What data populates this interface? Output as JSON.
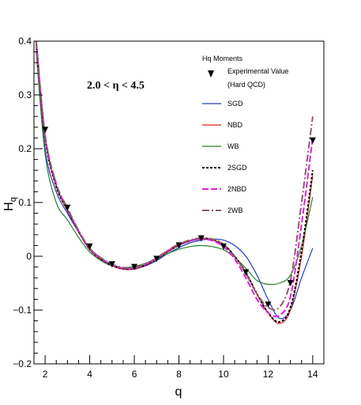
{
  "chart_data": {
    "type": "line",
    "title": "",
    "xlabel": "q",
    "ylabel": "H",
    "ylabel_sub": "q",
    "xlim": [
      1.5,
      14.5
    ],
    "ylim": [
      -0.2,
      0.4
    ],
    "x_ticks": [
      2,
      4,
      6,
      8,
      10,
      12,
      14
    ],
    "x_tick_labels": [
      "2",
      "4",
      "6",
      "8",
      "10",
      "12",
      "14"
    ],
    "y_ticks": [
      -0.2,
      -0.1,
      0,
      0.1,
      0.2,
      0.3,
      0.4
    ],
    "y_tick_labels": [
      "-0.2",
      "-0.1",
      "0",
      "0.1",
      "0.2",
      "0.3",
      "0.4"
    ],
    "grid": false,
    "legend_position": "top-right",
    "legend_title": "Hq Moments",
    "annotation": "2.0 < η < 4.5",
    "experimental": {
      "name": "Experimental Value",
      "name_line2": "(Hard QCD)",
      "color": "#000000",
      "x": [
        2,
        3,
        4,
        5,
        6,
        7,
        8,
        9,
        10,
        11,
        12,
        13,
        14
      ],
      "y": [
        0.235,
        0.09,
        0.018,
        -0.015,
        -0.02,
        -0.005,
        0.02,
        0.033,
        0.018,
        -0.03,
        -0.09,
        -0.05,
        0.215
      ]
    },
    "series": [
      {
        "name": "SGD",
        "color": "#1f3fbf",
        "dash": "",
        "x": [
          1.6,
          2,
          2.5,
          3,
          3.5,
          4,
          4.5,
          5,
          5.5,
          6,
          6.5,
          7,
          7.5,
          8,
          8.5,
          9,
          9.5,
          10,
          10.5,
          11,
          11.5,
          12,
          12.5,
          13,
          13.5,
          14
        ],
        "y": [
          0.39,
          0.2,
          0.12,
          0.08,
          0.045,
          0.015,
          -0.003,
          -0.015,
          -0.022,
          -0.023,
          -0.018,
          -0.008,
          0.005,
          0.016,
          0.025,
          0.03,
          0.032,
          0.03,
          0.02,
          0.0,
          -0.035,
          -0.08,
          -0.115,
          -0.1,
          -0.04,
          0.015
        ]
      },
      {
        "name": "NBD",
        "color": "#ee2222",
        "dash": "",
        "x": [
          1.6,
          2,
          2.5,
          3,
          3.5,
          4,
          4.5,
          5,
          5.5,
          6,
          6.5,
          7,
          7.5,
          8,
          8.5,
          9,
          9.5,
          10,
          10.5,
          11,
          11.5,
          12,
          12.5,
          13,
          13.5,
          14
        ],
        "y": [
          0.4,
          0.22,
          0.13,
          0.085,
          0.045,
          0.012,
          -0.006,
          -0.018,
          -0.024,
          -0.024,
          -0.017,
          -0.006,
          0.008,
          0.02,
          0.028,
          0.032,
          0.03,
          0.022,
          0.0,
          -0.03,
          -0.07,
          -0.105,
          -0.125,
          -0.1,
          0.0,
          0.15
        ]
      },
      {
        "name": "WB",
        "color": "#2a7f2a",
        "dash": "",
        "x": [
          1.6,
          2,
          2.5,
          3,
          3.5,
          4,
          4.5,
          5,
          5.5,
          6,
          6.5,
          7,
          7.5,
          8,
          8.5,
          9,
          9.5,
          10,
          10.5,
          11,
          11.5,
          12,
          12.5,
          13,
          13.5,
          14
        ],
        "y": [
          0.38,
          0.19,
          0.1,
          0.068,
          0.035,
          0.008,
          -0.008,
          -0.018,
          -0.021,
          -0.019,
          -0.013,
          -0.005,
          0.005,
          0.013,
          0.018,
          0.02,
          0.018,
          0.012,
          -0.002,
          -0.022,
          -0.045,
          -0.052,
          -0.05,
          -0.035,
          0.02,
          0.11
        ]
      },
      {
        "name": "2SGD",
        "color": "#000000",
        "dash": "3,2",
        "x": [
          1.6,
          2,
          2.5,
          3,
          3.5,
          4,
          4.5,
          5,
          5.5,
          6,
          6.5,
          7,
          7.5,
          8,
          8.5,
          9,
          9.5,
          10,
          10.5,
          11,
          11.5,
          12,
          12.5,
          13,
          13.5,
          14
        ],
        "y": [
          0.4,
          0.22,
          0.13,
          0.086,
          0.046,
          0.013,
          -0.005,
          -0.017,
          -0.023,
          -0.023,
          -0.016,
          -0.005,
          0.009,
          0.021,
          0.029,
          0.033,
          0.031,
          0.022,
          0.0,
          -0.03,
          -0.07,
          -0.105,
          -0.122,
          -0.095,
          0.01,
          0.16
        ]
      },
      {
        "name": "2NBD",
        "color": "#e020e0",
        "dash": "8,3",
        "x": [
          1.6,
          2,
          2.5,
          3,
          3.5,
          4,
          4.5,
          5,
          5.5,
          6,
          6.5,
          7,
          7.5,
          8,
          8.5,
          9,
          9.5,
          10,
          10.5,
          11,
          11.5,
          12,
          12.5,
          13,
          13.5,
          14
        ],
        "y": [
          0.4,
          0.225,
          0.135,
          0.088,
          0.047,
          0.014,
          -0.004,
          -0.016,
          -0.022,
          -0.022,
          -0.015,
          -0.004,
          0.01,
          0.022,
          0.029,
          0.032,
          0.029,
          0.018,
          -0.005,
          -0.04,
          -0.08,
          -0.105,
          -0.11,
          -0.075,
          0.06,
          0.22
        ]
      },
      {
        "name": "2WB",
        "color": "#8a5a6a",
        "dash": "9,3,2,3",
        "x": [
          1.6,
          2,
          2.5,
          3,
          3.5,
          4,
          4.5,
          5,
          5.5,
          6,
          6.5,
          7,
          7.5,
          8,
          8.5,
          9,
          9.5,
          10,
          10.5,
          11,
          11.5,
          12,
          12.5,
          13,
          13.5,
          14
        ],
        "y": [
          0.4,
          0.225,
          0.135,
          0.09,
          0.048,
          0.015,
          -0.003,
          -0.015,
          -0.021,
          -0.021,
          -0.014,
          -0.003,
          0.011,
          0.023,
          0.03,
          0.034,
          0.032,
          0.022,
          0.0,
          -0.032,
          -0.07,
          -0.095,
          -0.095,
          -0.045,
          0.1,
          0.26
        ]
      }
    ]
  }
}
